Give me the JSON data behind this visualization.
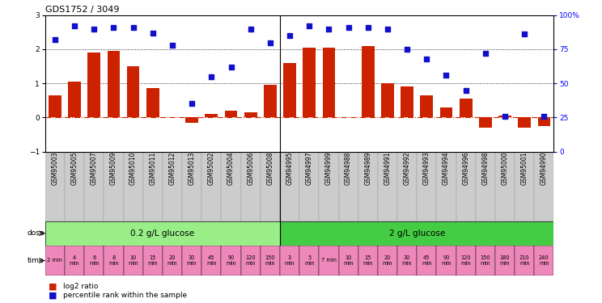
{
  "title": "GDS1752 / 3049",
  "samples": [
    "GSM95003",
    "GSM95005",
    "GSM95007",
    "GSM95009",
    "GSM95010",
    "GSM95011",
    "GSM95012",
    "GSM95013",
    "GSM95002",
    "GSM95004",
    "GSM95006",
    "GSM95008",
    "GSM94995",
    "GSM94997",
    "GSM94999",
    "GSM94988",
    "GSM94989",
    "GSM94991",
    "GSM94992",
    "GSM94993",
    "GSM94994",
    "GSM94996",
    "GSM94998",
    "GSM95000",
    "GSM95001",
    "GSM94990"
  ],
  "log2_ratio": [
    0.65,
    1.05,
    1.9,
    1.95,
    1.5,
    0.85,
    0.0,
    -0.15,
    0.1,
    0.2,
    0.15,
    0.95,
    1.6,
    2.05,
    2.05,
    0.0,
    2.1,
    1.0,
    0.9,
    0.65,
    0.3,
    0.55,
    -0.3,
    0.05,
    -0.3,
    -0.25
  ],
  "percentile": [
    82,
    92,
    90,
    91,
    91,
    87,
    78,
    35,
    55,
    62,
    90,
    80,
    85,
    92,
    90,
    91,
    91,
    90,
    75,
    68,
    56,
    45,
    72,
    26,
    86,
    26
  ],
  "bar_color": "#cc2200",
  "dot_color": "#1111cc",
  "hline_color": "#cc2200",
  "bg_color": "#ffffff",
  "sample_bg": "#cccccc",
  "ylim": [
    -1,
    3
  ],
  "yticks_left": [
    -1,
    0,
    1,
    2,
    3
  ],
  "yticks_right": [
    0,
    25,
    50,
    75,
    100
  ],
  "dose_groups": [
    {
      "label": "0.2 g/L glucose",
      "start": 0,
      "end": 12,
      "color": "#99ee88"
    },
    {
      "label": "2 g/L glucose",
      "start": 12,
      "end": 26,
      "color": "#44cc44"
    }
  ],
  "time_labels": [
    "2 min",
    "4\nmin",
    "6\nmin",
    "8\nmin",
    "10\nmin",
    "15\nmin",
    "20\nmin",
    "30\nmin",
    "45\nmin",
    "90\nmin",
    "120\nmin",
    "150\nmin",
    "3\nmin",
    "5\nmin",
    "7 min",
    "10\nmin",
    "15\nmin",
    "20\nmin",
    "30\nmin",
    "45\nmin",
    "90\nmin",
    "120\nmin",
    "150\nmin",
    "180\nmin",
    "210\nmin",
    "240\nmin"
  ],
  "time_bg": "#ee88bb",
  "sep_index": 12,
  "tick_fontsize": 6.5,
  "sample_fontsize": 5.5,
  "time_fontsize": 4.8,
  "dose_fontsize": 7.5
}
